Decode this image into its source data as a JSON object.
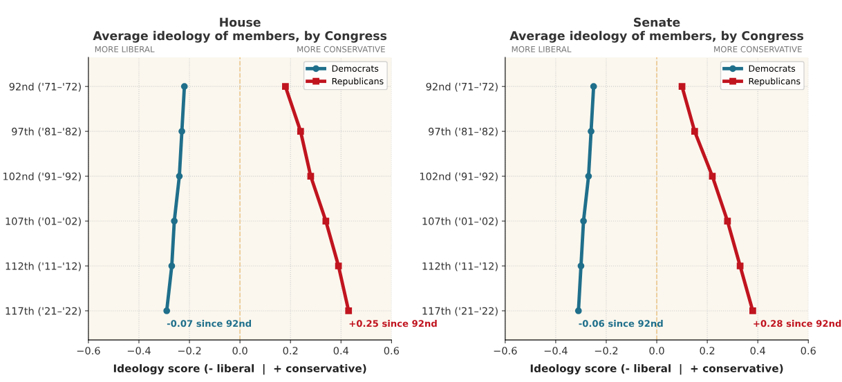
{
  "chart_data": [
    {
      "type": "line",
      "title": "House",
      "subtitle": "Average ideology of members, by Congress",
      "xlabel": "Ideology score (- liberal  |  + conservative)",
      "orientation": "horizontal",
      "categories": [
        "92nd ('71–'72)",
        "97th ('81–'82)",
        "102nd ('91–'92)",
        "107th ('01–'02)",
        "112th ('11–'12)",
        "117th ('21–'22)"
      ],
      "series": [
        {
          "name": "Democrats",
          "color": "#1f6f8b",
          "marker": "circle",
          "values": [
            -0.22,
            -0.23,
            -0.24,
            -0.26,
            -0.27,
            -0.29
          ]
        },
        {
          "name": "Republicans",
          "color": "#c0141f",
          "marker": "square",
          "values": [
            0.18,
            0.24,
            0.28,
            0.34,
            0.39,
            0.43
          ]
        }
      ],
      "xlim": [
        -0.6,
        0.6
      ],
      "xticks": [
        {
          "value": -0.6,
          "label": "−0.6"
        },
        {
          "value": -0.4,
          "label": "−0.4"
        },
        {
          "value": -0.2,
          "label": "−0.2"
        },
        {
          "value": 0,
          "label": "0.0"
        },
        {
          "value": 0.2,
          "label": "0.2"
        },
        {
          "value": 0.4,
          "label": "0.4"
        },
        {
          "value": 0.6,
          "label": "0.6"
        }
      ],
      "ref_lines": [
        {
          "axis": "x",
          "value": 0,
          "color": "#f5c77e",
          "line_style": "dashed"
        }
      ],
      "annotations": [
        "MORE LIBERAL",
        "MORE CONSERVATIVE",
        {
          "text": "-0.07 since 92nd",
          "x": -0.29,
          "y": "117th ('21–'22)"
        },
        {
          "text": "+0.25 since 92nd",
          "x": 0.43,
          "y": "117th ('21–'22)"
        }
      ],
      "grid": true,
      "legend": "top right",
      "line_style": "solid"
    },
    {
      "type": "line",
      "title": "Senate",
      "subtitle": "Average ideology of members, by Congress",
      "xlabel": "Ideology score (- liberal  |  + conservative)",
      "orientation": "horizontal",
      "categories": [
        "92nd ('71–'72)",
        "97th ('81–'82)",
        "102nd ('91–'92)",
        "107th ('01–'02)",
        "112th ('11–'12)",
        "117th ('21–'22)"
      ],
      "series": [
        {
          "name": "Democrats",
          "color": "#1f6f8b",
          "marker": "circle",
          "values": [
            -0.25,
            -0.26,
            -0.27,
            -0.29,
            -0.3,
            -0.31
          ]
        },
        {
          "name": "Republicans",
          "color": "#c0141f",
          "marker": "square",
          "values": [
            0.1,
            0.15,
            0.22,
            0.28,
            0.33,
            0.38
          ]
        }
      ],
      "xlim": [
        -0.6,
        0.6
      ],
      "xticks": [
        {
          "value": -0.6,
          "label": "−0.6"
        },
        {
          "value": -0.4,
          "label": "−0.4"
        },
        {
          "value": -0.2,
          "label": "−0.2"
        },
        {
          "value": 0,
          "label": "0.0"
        },
        {
          "value": 0.2,
          "label": "0.2"
        },
        {
          "value": 0.4,
          "label": "0.4"
        },
        {
          "value": 0.6,
          "label": "0.6"
        }
      ],
      "ref_lines": [
        {
          "axis": "x",
          "value": 0,
          "color": "#f5c77e",
          "line_style": "dashed"
        }
      ],
      "annotations": [
        "MORE LIBERAL",
        "MORE CONSERVATIVE",
        {
          "text": "-0.06 since 92nd",
          "x": -0.31,
          "y": "117th ('21–'22)"
        },
        {
          "text": "+0.28 since 92nd",
          "x": 0.38,
          "y": "117th ('21–'22)"
        }
      ],
      "grid": true,
      "legend": "top right",
      "line_style": "solid"
    }
  ]
}
